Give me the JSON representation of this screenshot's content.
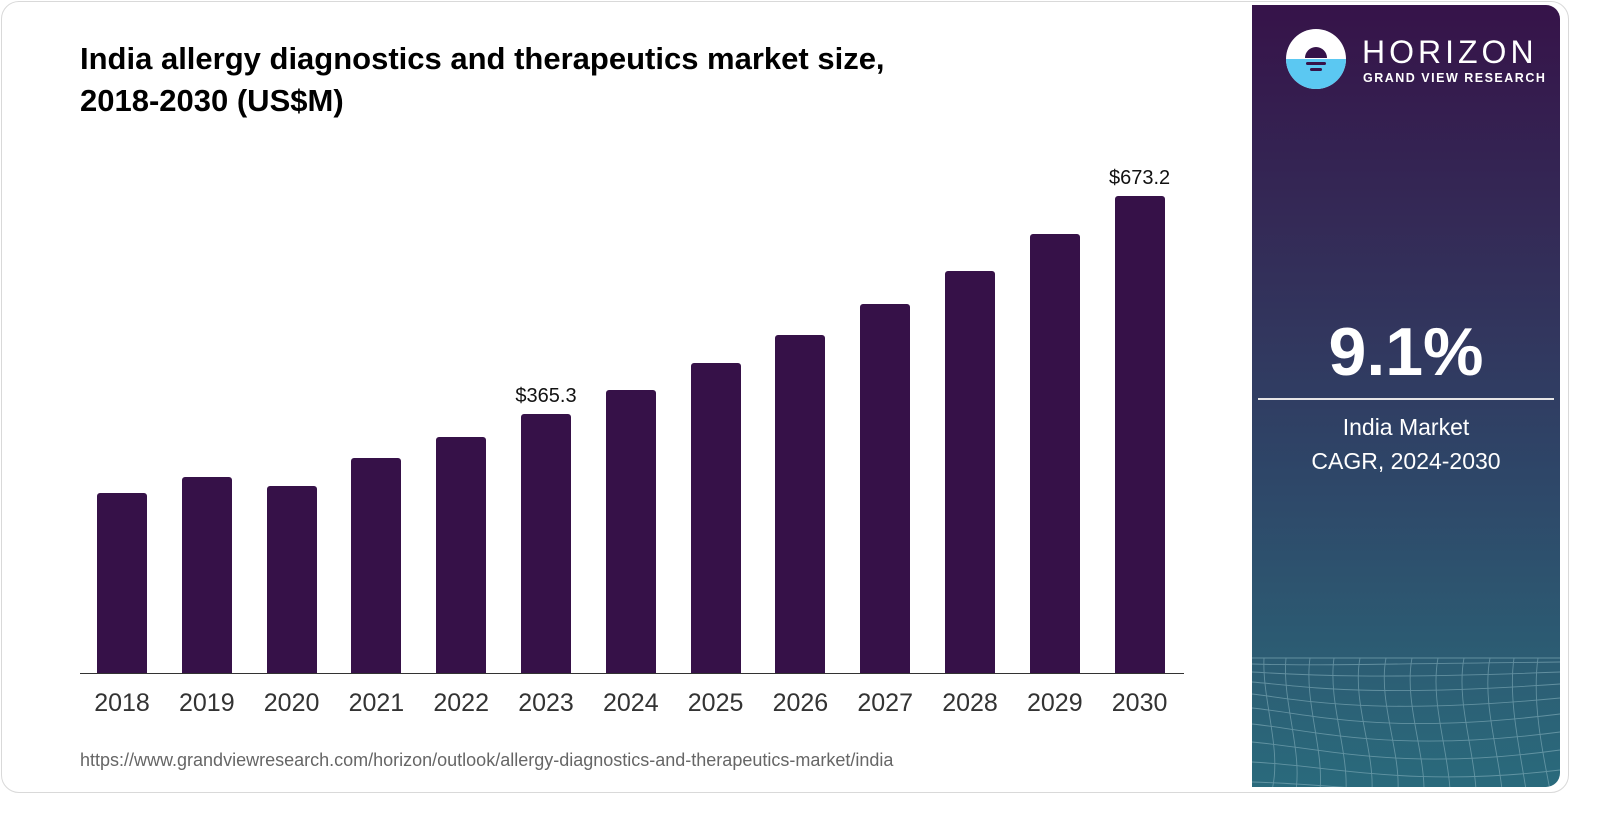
{
  "header": {
    "title_line1": "India allergy diagnostics and therapeutics market size,",
    "title_line2": "2018-2030 (US$M)"
  },
  "source_url": "https://www.grandviewresearch.com/horizon/outlook/allergy-diagnostics-and-therapeutics-market/india",
  "sidebar": {
    "brand": "HORIZON",
    "brand_sub": "GRAND VIEW RESEARCH",
    "cagr_value": "9.1%",
    "cagr_label_line1": "India Market",
    "cagr_label_line2": "CAGR, 2024-2030"
  },
  "colors": {
    "bar": "#361148",
    "sidebar_top": "#361349",
    "sidebar_bottom": "#2a6a7c",
    "logo_water": "#5bc8f2"
  },
  "chart_data": {
    "type": "bar",
    "title": "India allergy diagnostics and therapeutics market size, 2018-2030 (US$M)",
    "xlabel": "",
    "ylabel": "US$M",
    "categories": [
      "2018",
      "2019",
      "2020",
      "2021",
      "2022",
      "2023",
      "2024",
      "2025",
      "2026",
      "2027",
      "2028",
      "2029",
      "2030"
    ],
    "values": [
      254.0,
      276.6,
      263.9,
      303.4,
      333.1,
      365.3,
      399.4,
      437.5,
      477.0,
      520.8,
      567.3,
      619.6,
      673.2
    ],
    "data_labels": [
      {
        "index": 5,
        "text": "$365.3"
      },
      {
        "index": 12,
        "text": "$673.2"
      }
    ],
    "ylim": [
      0,
      673.2
    ],
    "grid": false,
    "legend": "none"
  }
}
